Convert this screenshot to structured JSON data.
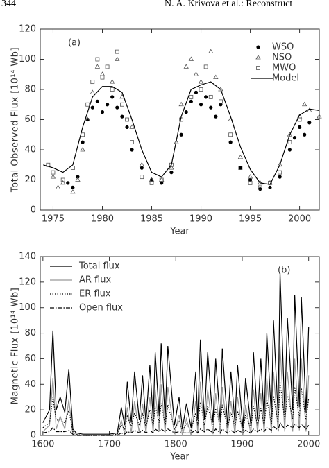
{
  "header": {
    "page_number": "344",
    "running_title": "N. A. Krivova et al.: Reconstruct"
  },
  "chart_data": [
    {
      "type": "scatter",
      "annotation": "(a)",
      "x_label": "Year",
      "y_label": "Total Observed Flux [10¹⁴ Wb]",
      "xlim": [
        1973.7,
        2002
      ],
      "xticks": [
        1975,
        1980,
        1985,
        1990,
        1995,
        2000
      ],
      "ylim": [
        0,
        120
      ],
      "yticks": [
        0,
        20,
        40,
        60,
        80,
        100,
        120
      ],
      "legend": "upper right",
      "series": [
        {
          "name": "WSO",
          "marker": "circle",
          "color": "#000000",
          "x": [
            1976.5,
            1977,
            1977.5,
            1978,
            1978.5,
            1979,
            1979.5,
            1980,
            1980.5,
            1981,
            1981.5,
            1982,
            1982.5,
            1983,
            1984,
            1985,
            1986,
            1987,
            1988,
            1988.5,
            1989,
            1989.5,
            1990,
            1990.5,
            1991,
            1991.5,
            1992,
            1993,
            1994,
            1995,
            1996,
            1997,
            1998,
            1999,
            1999.5,
            2000,
            2000.5,
            2001
          ],
          "values": [
            18,
            15,
            22,
            45,
            60,
            68,
            72,
            65,
            70,
            75,
            68,
            62,
            55,
            40,
            28,
            20,
            18,
            25,
            50,
            65,
            72,
            78,
            70,
            75,
            68,
            62,
            70,
            45,
            28,
            20,
            14,
            15,
            22,
            40,
            48,
            55,
            50,
            58
          ]
        },
        {
          "name": "NSO",
          "marker": "triangle",
          "color": "#555555",
          "x": [
            1975,
            1975.5,
            1976,
            1977,
            1977.5,
            1978,
            1978.5,
            1979,
            1979.5,
            1980,
            1981,
            1981.5,
            1982,
            1983,
            1984,
            1985,
            1986,
            1987,
            1987.5,
            1988,
            1988.5,
            1989,
            1989.5,
            1990,
            1991,
            1991.5,
            1992,
            1993,
            1994,
            1995,
            1996,
            1997,
            1998,
            1999,
            2000,
            2000.5,
            2001,
            2002
          ],
          "values": [
            22,
            15,
            18,
            12,
            20,
            40,
            60,
            78,
            95,
            90,
            85,
            100,
            75,
            55,
            30,
            20,
            20,
            28,
            45,
            70,
            95,
            100,
            90,
            85,
            105,
            88,
            80,
            60,
            35,
            22,
            18,
            18,
            30,
            50,
            62,
            70,
            66,
            62
          ]
        },
        {
          "name": "MWO",
          "marker": "square",
          "color": "#555555",
          "x": [
            1974.5,
            1975,
            1976,
            1977,
            1978,
            1978.5,
            1979,
            1979.5,
            1980,
            1980.5,
            1981,
            1981.5,
            1982,
            1982.5,
            1983,
            1984,
            1985,
            1986,
            1987,
            1988,
            1989,
            1990,
            1990.5,
            1991,
            1992,
            1993,
            1994,
            1995,
            1996,
            1997,
            1998,
            1999,
            2000
          ],
          "values": [
            30,
            25,
            20,
            28,
            50,
            70,
            85,
            100,
            88,
            95,
            80,
            105,
            70,
            60,
            45,
            22,
            18,
            20,
            30,
            60,
            75,
            80,
            95,
            75,
            72,
            50,
            28,
            18,
            15,
            18,
            25,
            45,
            60
          ]
        },
        {
          "name": "Model",
          "marker": "line",
          "color": "#000000",
          "x": [
            1974,
            1975,
            1976,
            1977,
            1978,
            1979,
            1980,
            1981,
            1982,
            1983,
            1984,
            1985,
            1986,
            1987,
            1988,
            1989,
            1990,
            1991,
            1992,
            1993,
            1994,
            1995,
            1996,
            1997,
            1998,
            1999,
            2000,
            2001,
            2002
          ],
          "values": [
            30,
            28,
            25,
            30,
            55,
            75,
            82,
            82,
            78,
            60,
            40,
            25,
            22,
            30,
            62,
            80,
            83,
            85,
            80,
            62,
            42,
            27,
            18,
            17,
            30,
            50,
            63,
            67,
            66
          ]
        }
      ]
    },
    {
      "type": "line",
      "annotation": "(b)",
      "x_label": "Year",
      "y_label": "Magnetic Flux [10¹⁴ Wb]",
      "xlim": [
        1596,
        2016
      ],
      "xticks": [
        1600,
        1700,
        1800,
        1900,
        2000
      ],
      "ylim": [
        0,
        140
      ],
      "yticks": [
        0,
        20,
        40,
        60,
        80,
        100,
        120,
        140
      ],
      "legend": "upper left",
      "x": [
        1600,
        1610,
        1615,
        1620,
        1626,
        1633,
        1639,
        1645,
        1650,
        1660,
        1680,
        1700,
        1712,
        1718,
        1723,
        1727,
        1733,
        1738,
        1745,
        1750,
        1755,
        1761,
        1766,
        1769,
        1775,
        1778,
        1784,
        1788,
        1798,
        1805,
        1810,
        1816,
        1823,
        1830,
        1833,
        1837,
        1843,
        1848,
        1856,
        1860,
        1867,
        1870,
        1878,
        1883,
        1889,
        1893,
        1901,
        1905,
        1913,
        1917,
        1923,
        1928,
        1933,
        1937,
        1944,
        1947,
        1954,
        1957,
        1964,
        1968,
        1976,
        1979,
        1986,
        1989,
        1996,
        2000
      ],
      "series": [
        {
          "name": "Total flux",
          "color": "#000000",
          "dash": "solid",
          "values": [
            10,
            20,
            82,
            20,
            30,
            18,
            52,
            5,
            2,
            1,
            1,
            1,
            2,
            22,
            8,
            42,
            10,
            50,
            12,
            47,
            10,
            55,
            12,
            65,
            15,
            72,
            12,
            70,
            8,
            30,
            5,
            25,
            6,
            50,
            12,
            75,
            12,
            65,
            10,
            60,
            10,
            68,
            8,
            50,
            10,
            55,
            6,
            45,
            8,
            65,
            12,
            60,
            12,
            80,
            14,
            90,
            15,
            127,
            18,
            92,
            20,
            110,
            22,
            108,
            18,
            85
          ]
        },
        {
          "name": "AR flux",
          "color": "#999999",
          "dash": "solid",
          "values": [
            3,
            8,
            45,
            5,
            15,
            5,
            28,
            1,
            0,
            0,
            0,
            0,
            0,
            12,
            1,
            22,
            2,
            27,
            2,
            25,
            2,
            30,
            2,
            36,
            3,
            40,
            2,
            38,
            1,
            16,
            0,
            13,
            0,
            27,
            2,
            42,
            2,
            36,
            1,
            33,
            1,
            38,
            1,
            27,
            1,
            30,
            0,
            24,
            1,
            36,
            2,
            33,
            2,
            45,
            2,
            50,
            3,
            70,
            3,
            50,
            3,
            60,
            4,
            60,
            3,
            47
          ]
        },
        {
          "name": "ER flux",
          "color": "#000000",
          "dash": "dotted",
          "values": [
            6,
            10,
            30,
            12,
            12,
            10,
            20,
            3,
            1,
            0,
            0,
            0,
            1,
            8,
            5,
            15,
            7,
            18,
            8,
            17,
            7,
            20,
            8,
            23,
            10,
            25,
            8,
            24,
            5,
            11,
            4,
            9,
            4,
            18,
            8,
            26,
            8,
            23,
            7,
            21,
            7,
            24,
            6,
            18,
            7,
            19,
            4,
            16,
            6,
            23,
            8,
            21,
            8,
            28,
            9,
            31,
            10,
            42,
            12,
            32,
            13,
            38,
            14,
            37,
            12,
            29
          ]
        },
        {
          "name": "Open flux",
          "color": "#000000",
          "dash": "dashdot",
          "values": [
            2,
            3,
            6,
            3,
            3,
            3,
            4,
            1,
            0,
            0,
            0,
            0,
            0,
            2,
            1,
            3,
            2,
            4,
            2,
            4,
            2,
            4,
            2,
            5,
            3,
            5,
            3,
            5,
            2,
            3,
            2,
            2,
            2,
            4,
            2,
            5,
            3,
            5,
            2,
            5,
            2,
            5,
            2,
            4,
            2,
            4,
            2,
            4,
            2,
            5,
            3,
            5,
            3,
            6,
            4,
            7,
            4,
            10,
            5,
            8,
            6,
            9,
            6,
            9,
            5,
            8
          ]
        }
      ]
    }
  ]
}
